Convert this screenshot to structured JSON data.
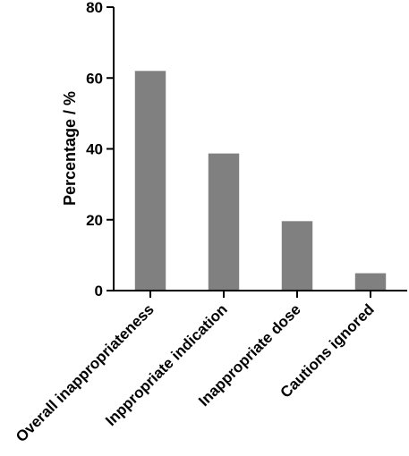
{
  "chart_data": {
    "type": "bar",
    "categories": [
      "Overall inappropriateness",
      "Inppropriate indication",
      "Inappropriate dose",
      "Cautions ignored"
    ],
    "values": [
      62,
      38.7,
      19.6,
      4.9
    ],
    "ylabel": "Percentage  / %",
    "xlabel": "",
    "ylim": [
      0,
      80
    ],
    "yticks": [
      "0",
      "20",
      "40",
      "60",
      "80"
    ],
    "bar_color": "#808080",
    "grid": false
  }
}
